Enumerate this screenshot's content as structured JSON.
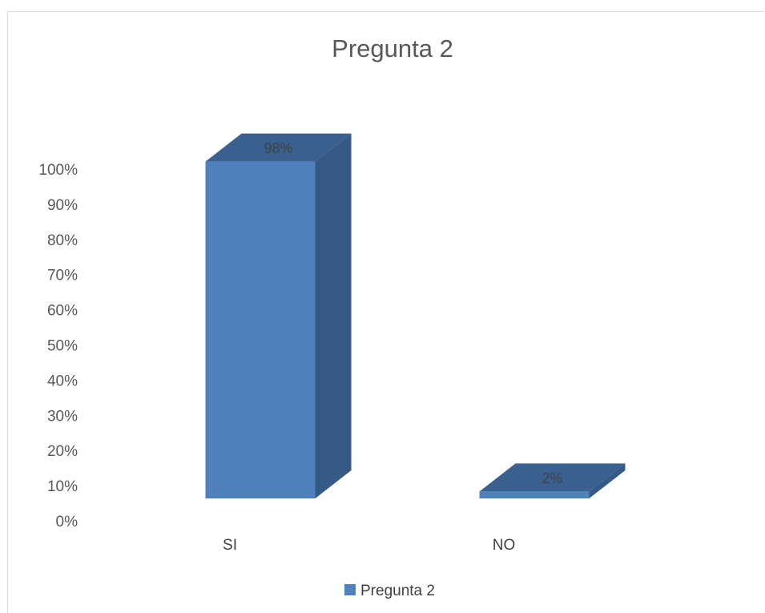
{
  "chart_data": {
    "type": "bar",
    "title": "Pregunta 2",
    "categories": [
      "SI",
      "NO"
    ],
    "series": [
      {
        "name": "Pregunta 2",
        "values": [
          98,
          2
        ],
        "data_labels": [
          "98%",
          "2%"
        ]
      }
    ],
    "ylim": [
      0,
      100
    ],
    "y_ticks": [
      "0%",
      "10%",
      "20%",
      "30%",
      "40%",
      "50%",
      "60%",
      "70%",
      "80%",
      "90%",
      "100%"
    ],
    "xlabel": "",
    "ylabel": "",
    "grid": false,
    "legend_position": "bottom",
    "three_d": true,
    "colors": {
      "front": "#4f81bd",
      "top": "#3a6090",
      "side": "#355a86"
    }
  }
}
